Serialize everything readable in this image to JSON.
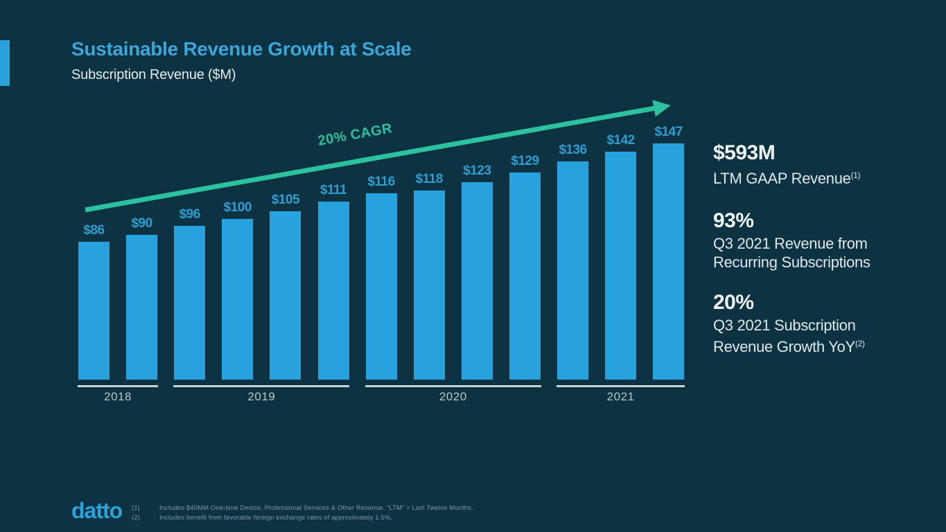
{
  "slide": {
    "title": "Sustainable Revenue Growth at Scale",
    "subtitle": "Subscription Revenue ($M)"
  },
  "chart_data": {
    "type": "bar",
    "title": "Subscription Revenue ($M)",
    "unit_prefix": "$",
    "annotation": "20% CAGR",
    "groups": [
      {
        "label": "2018",
        "values": [
          86,
          90
        ]
      },
      {
        "label": "2019",
        "values": [
          96,
          100,
          105,
          111
        ]
      },
      {
        "label": "2020",
        "values": [
          116,
          118,
          123,
          129
        ]
      },
      {
        "label": "2021",
        "values": [
          136,
          142,
          147
        ]
      }
    ],
    "bar_labels": [
      "$86",
      "$90",
      "$96",
      "$100",
      "$105",
      "$111",
      "$116",
      "$118",
      "$123",
      "$129",
      "$136",
      "$142",
      "$147"
    ],
    "ylim": [
      0,
      165
    ],
    "gridlines": false,
    "legend": "none",
    "bar_color": "#27a2dc",
    "trend_color": "#2cc29f",
    "label_color": "#2d9ed4"
  },
  "stats": [
    {
      "value": "$593M",
      "lines": [
        "LTM GAAP Revenue"
      ],
      "sup": "(1)"
    },
    {
      "value": "93%",
      "lines": [
        "Q3 2021 Revenue from",
        "Recurring Subscriptions"
      ],
      "sup": ""
    },
    {
      "value": "20%",
      "lines": [
        "Q3 2021 Subscription",
        "Revenue Growth YoY"
      ],
      "sup": "(2)"
    }
  ],
  "footer": {
    "logo": "datto",
    "footnotes": [
      {
        "ref": "(1)",
        "text": "Includes $40MM One-time Device, Professional Services & Other Revenue. “LTM” = Last Twelve Months."
      },
      {
        "ref": "(2)",
        "text": "Includes benefit from favorable foreign exchange rates of approximately 1.5%."
      }
    ]
  },
  "colors": {
    "background": "#0d3241",
    "accent_blue": "#2aa2dc",
    "title_blue": "#3ba6d9",
    "trend_green": "#2cc29f",
    "text_white": "#e4ecee",
    "axis_line": "#c9d3d7",
    "footnote_gray": "#7e97a4"
  }
}
